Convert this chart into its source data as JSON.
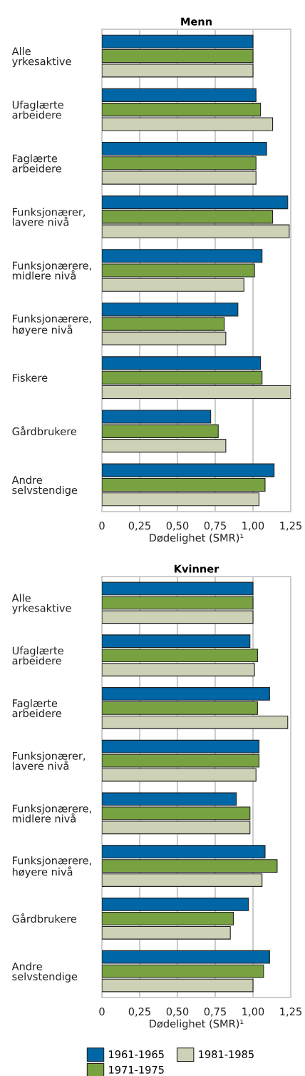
{
  "chart_data": [
    {
      "type": "bar",
      "orientation": "horizontal",
      "title": "Menn",
      "xlabel": "Dødelighet (SMR)¹",
      "categories": [
        "Alle\nyrkesaktive",
        "Ufaglærte\narbeidere",
        "Faglærte\narbeidere",
        "Funksjonærer,\nlavere nivå",
        "Funksjonærere,\nmidlere nivå",
        "Funksjonærere,\nhøyere nivå",
        "Fiskere",
        "Gårdbrukere",
        "Andre\nselvstendige"
      ],
      "series": [
        {
          "color": "#0066a6",
          "values": [
            1.0,
            1.02,
            1.09,
            1.23,
            1.06,
            0.9,
            1.05,
            0.72,
            1.14
          ]
        },
        {
          "color": "#78a242",
          "values": [
            1.0,
            1.05,
            1.02,
            1.13,
            1.01,
            0.81,
            1.06,
            0.77,
            1.08
          ]
        },
        {
          "color": "#cdd1b6",
          "values": [
            1.0,
            1.13,
            1.02,
            1.24,
            0.94,
            0.82,
            1.25,
            0.82,
            1.04
          ]
        }
      ],
      "xlim": [
        0,
        1.25
      ],
      "xticks": [
        0,
        {
          "value": 0.25,
          "label": "0,25"
        },
        {
          "value": 0.5,
          "label": "0,50"
        },
        {
          "value": 0.75,
          "label": "0,75"
        },
        {
          "value": 1.0,
          "label": "1,00"
        },
        {
          "value": 1.25,
          "label": "1,25"
        }
      ],
      "grid": "x",
      "legend": false
    },
    {
      "type": "bar",
      "orientation": "horizontal",
      "title": "Kvinner",
      "xlabel": "Dødelighet (SMR)¹",
      "categories": [
        "Alle\nyrkesaktive",
        "Ufaglærte\narbeidere",
        "Faglærte\narbeidere",
        "Funksjonærer,\nlavere nivå",
        "Funksjonærere,\nmidlere nivå",
        "Funksjonærere,\nhøyere nivå",
        "Gårdbrukere",
        "Andre\nselvstendige"
      ],
      "series": [
        {
          "name": "1961-1965",
          "color": "#0066a6",
          "values": [
            1.0,
            0.98,
            1.11,
            1.04,
            0.89,
            1.08,
            0.97,
            1.11
          ]
        },
        {
          "name": "1971-1975",
          "color": "#78a242",
          "values": [
            1.0,
            1.03,
            1.03,
            1.04,
            0.98,
            1.16,
            0.87,
            1.07
          ]
        },
        {
          "name": "1981-1985",
          "color": "#cdd1b6",
          "values": [
            1.0,
            1.01,
            1.23,
            1.02,
            0.98,
            1.06,
            0.85,
            1.0
          ]
        }
      ],
      "xlim": [
        0,
        1.25
      ],
      "xticks": [
        0,
        {
          "value": 0.25,
          "label": "0,25"
        },
        {
          "value": 0.5,
          "label": "0,50"
        },
        {
          "value": 0.75,
          "label": "0,75"
        },
        {
          "value": 1.0,
          "label": "1,00"
        },
        {
          "value": 1.25,
          "label": "1,25"
        }
      ],
      "grid": "x",
      "legend": "bottom"
    }
  ]
}
